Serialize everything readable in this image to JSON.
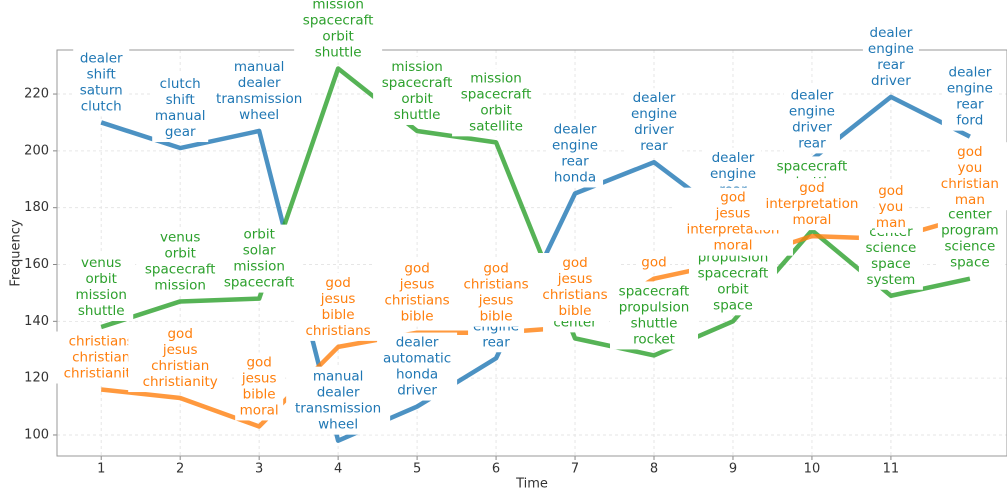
{
  "chart_data": {
    "type": "line",
    "x_label": "Time",
    "y_label": "Frequency",
    "x": [
      1,
      2,
      3,
      4,
      5,
      6,
      7,
      8,
      9,
      10,
      11,
      12
    ],
    "xlim": [
      0.44,
      12.47
    ],
    "xticks": [
      1,
      2,
      3,
      4,
      5,
      6,
      7,
      8,
      9,
      10,
      11
    ],
    "ylim": [
      92.6,
      235.5
    ],
    "yticks": [
      100,
      120,
      140,
      160,
      180,
      200,
      220
    ],
    "grid": true,
    "series": [
      {
        "color": "#1f77b4",
        "values": [
          210,
          201,
          207,
          98,
          110,
          127,
          185,
          196,
          175,
          197,
          219,
          205
        ],
        "labels": [
          "dealer shift saturn clutch",
          "clutch shift manual gear",
          "manual dealer transmission wheel",
          "manual dealer transmission wheel",
          "dealer automatic honda driver",
          "dealer honda engine rear",
          "dealer engine rear honda",
          "dealer engine driver rear",
          "dealer engine rear driver",
          "dealer engine driver rear",
          "dealer engine rear driver",
          "dealer engine rear ford"
        ]
      },
      {
        "color": "#2ca02c",
        "values": [
          138,
          147,
          148,
          229,
          207,
          203,
          134,
          128,
          140,
          172,
          149,
          155
        ],
        "labels": [
          "venus orbit mission shuttle",
          "venus orbit spacecraft mission",
          "orbit solar mission spacecraft",
          "mission spacecraft orbit shuttle",
          "mission spacecraft orbit shuttle",
          "mission spacecraft orbit satellite",
          "flight rocket mission center",
          "spacecraft propulsion shuttle rocket",
          "propulsion spacecraft orbit space",
          "spacecraft shuttle field orbit",
          "center science space system",
          "center program science space"
        ]
      },
      {
        "color": "#ff7f0e",
        "values": [
          116,
          113,
          103,
          131,
          136,
          136,
          138,
          155,
          161,
          170,
          169,
          177
        ],
        "labels": [
          "christians christian christianity",
          "god jesus christian christianity",
          "god jesus bible moral",
          "god jesus bible christians",
          "god jesus christians bible",
          "god christians jesus bible",
          "god jesus christians bible",
          "god",
          "god jesus interpretation moral",
          "god interpretation moral",
          "god you man",
          "god you christian man"
        ]
      }
    ]
  }
}
